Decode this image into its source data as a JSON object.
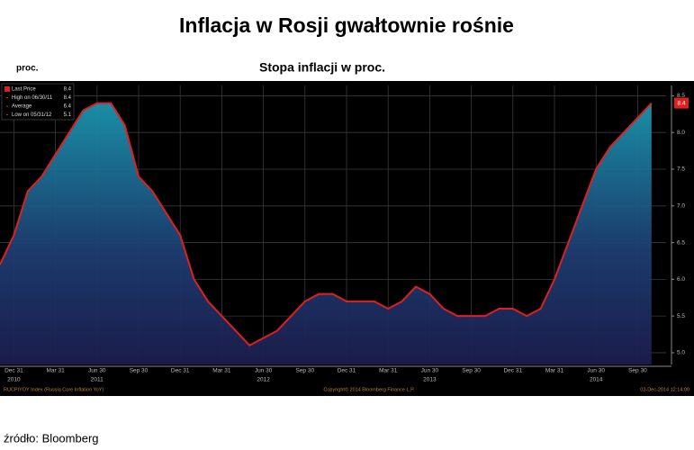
{
  "chart_data": {
    "type": "area",
    "title": "Inflacja w Rosji gwałtownie rośnie",
    "subtitle": "Stopa inflacji w proc.",
    "y_label": "proc.",
    "source": "źródło: Bloomberg",
    "footer": [
      "RUCPIYOY Index (Russia Core Inflation YoY)",
      "Copyright© 2014 Bloomberg Finance L.P.",
      "02-Dec-2014 12:14:00"
    ],
    "legend": [
      {
        "name": "Last Price",
        "value": "8.4",
        "color": "#e02020"
      },
      {
        "name": "High on 06/30/11",
        "value": "8.4",
        "color": "#e02020"
      },
      {
        "name": "Average",
        "value": "6.4",
        "color": "#e02020"
      },
      {
        "name": "Low on 05/31/12",
        "value": "5.1",
        "color": "#e02020"
      }
    ],
    "last_price_label": "8.4",
    "categories": [
      null,
      "Dec 31",
      null,
      null,
      "Mar 31",
      null,
      null,
      "Jun 30",
      null,
      null,
      "Sep 30",
      null,
      null,
      "Dec 31",
      null,
      null,
      "Mar 31",
      null,
      null,
      "Jun 30",
      null,
      null,
      "Sep 30",
      null,
      null,
      "Dec 31",
      null,
      null,
      "Mar 31",
      null,
      null,
      "Jun 30",
      null,
      null,
      "Sep 30",
      null,
      null,
      "Dec 31",
      null,
      null,
      "Mar 31",
      null,
      null,
      "Jun 30",
      null,
      null,
      "Sep 30",
      null
    ],
    "year_labels": [
      {
        "label": "2010",
        "category": 1
      },
      {
        "label": "2011",
        "category": 7
      },
      {
        "label": "2012",
        "category": 19
      },
      {
        "label": "2013",
        "category": 31
      },
      {
        "label": "2014",
        "category": 43
      }
    ],
    "series": [
      {
        "name": "RUCPIYOY Index",
        "color": "#e02020",
        "values": [
          6.2,
          6.6,
          7.2,
          7.4,
          7.7,
          8.0,
          8.3,
          8.4,
          8.4,
          8.1,
          7.4,
          7.2,
          6.9,
          6.6,
          6.0,
          5.7,
          5.5,
          5.3,
          5.1,
          5.2,
          5.3,
          5.5,
          5.7,
          5.8,
          5.8,
          5.7,
          5.7,
          5.7,
          5.6,
          5.7,
          5.9,
          5.8,
          5.6,
          5.5,
          5.5,
          5.5,
          5.6,
          5.6,
          5.5,
          5.6,
          6.0,
          6.5,
          7.0,
          7.5,
          7.8,
          8.0,
          8.2,
          8.4
        ]
      }
    ],
    "ylim": [
      4.84,
      8.64
    ],
    "yticks": [
      {
        "value": 5,
        "label": "5.0"
      },
      5.5,
      {
        "value": 6,
        "label": "6.0"
      },
      6.5,
      {
        "value": 7,
        "label": "7.0"
      },
      7.5,
      {
        "value": 8,
        "label": "8.0"
      },
      8.5
    ],
    "grid": true
  }
}
